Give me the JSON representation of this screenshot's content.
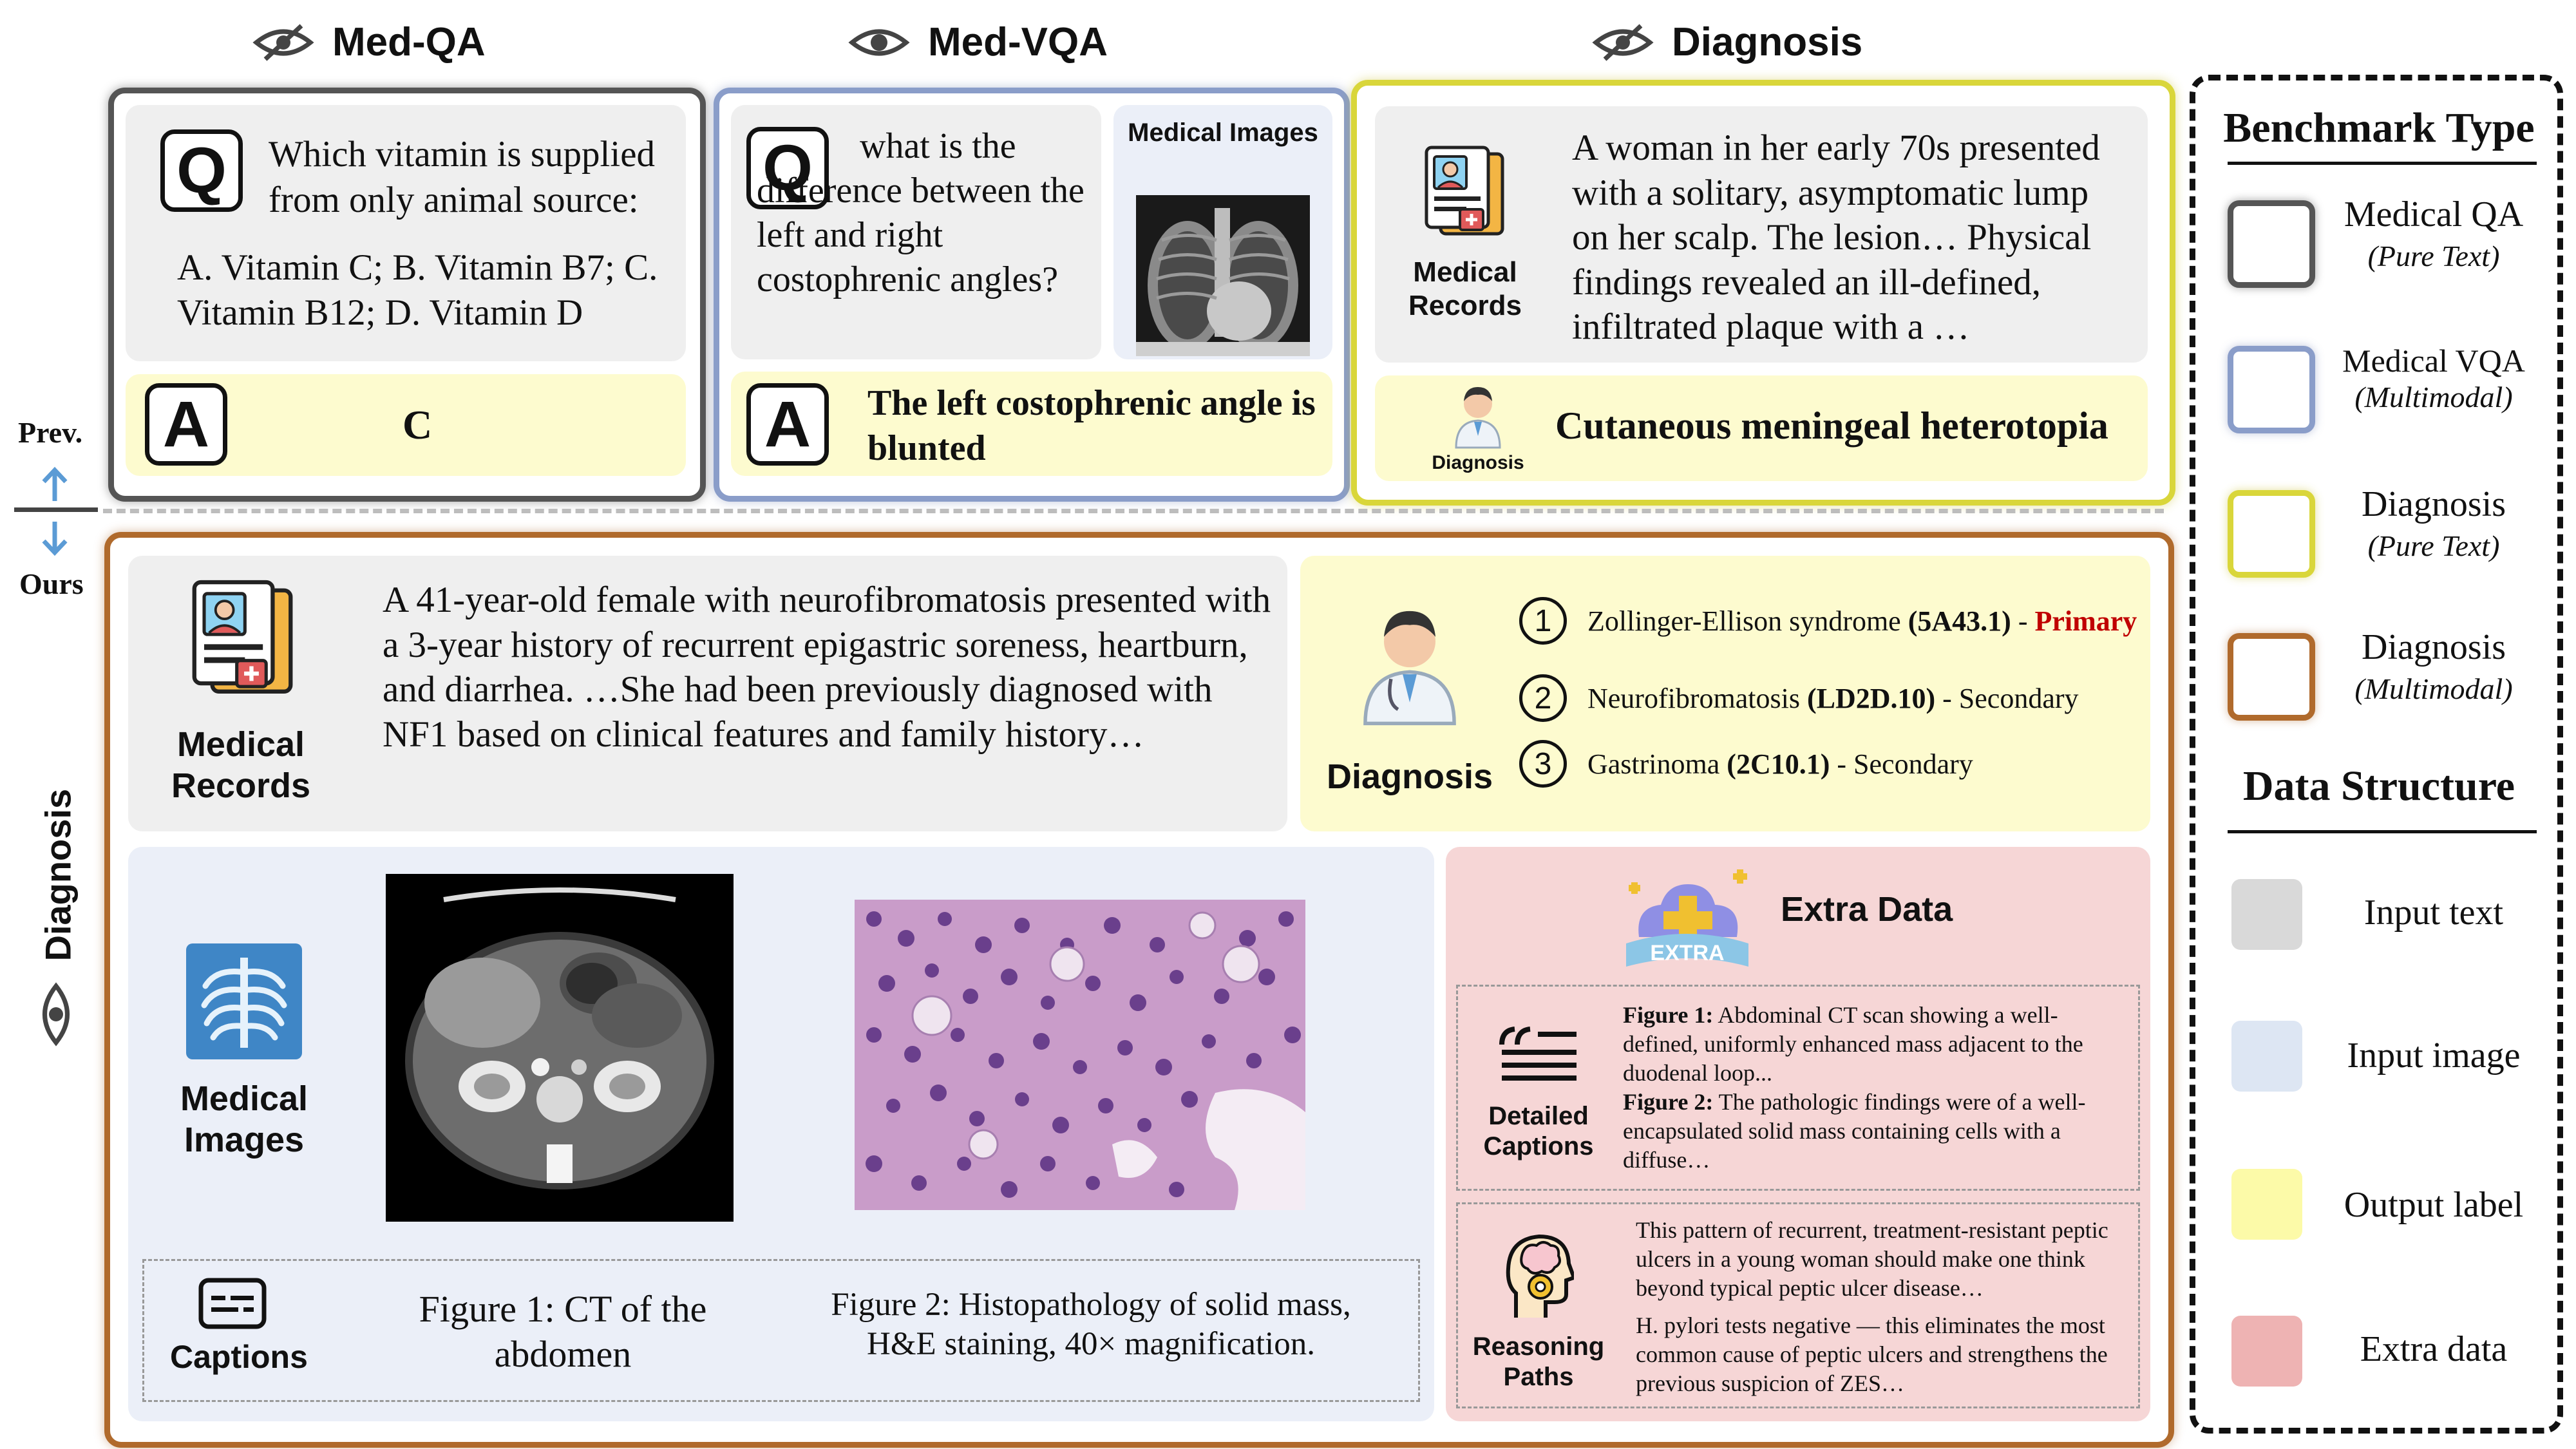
{
  "headers": {
    "medqa": "Med-QA",
    "medvqa": "Med-VQA",
    "diagnosis": "Diagnosis"
  },
  "medqa": {
    "question": "Which vitamin is supplied from only animal source:",
    "options": "A. Vitamin C; B. Vitamin B7; C. Vitamin B12; D. Vitamin D",
    "answer": "C",
    "q_letter": "Q",
    "a_letter": "A"
  },
  "medvqa": {
    "question": "what is the difference between the left and right costophrenic angles?",
    "images_label": "Medical Images",
    "answer": "The left costophrenic angle is blunted"
  },
  "prev_diagnosis": {
    "records_label": "Medical Records",
    "text": "A woman in her early 70s presented with a solitary, asymptomatic lump on her scalp. The lesion… Physical findings revealed an ill-defined, infiltrated plaque with a …",
    "diagnosis_icon_label": "Diagnosis",
    "answer": "Cutaneous meningeal heterotopia"
  },
  "side": {
    "prev": "Prev.",
    "ours": "Ours",
    "vertical": "Diagnosis"
  },
  "ours": {
    "records_label": "Medical Records",
    "record_text": "A 41-year-old female with neurofibromatosis presented with a 3-year history of recurrent epigastric soreness, heartburn, and diarrhea. …She had been previously diagnosed with NF1 based on clinical features and family history…",
    "diagnosis_label": "Diagnosis",
    "diagnoses": [
      {
        "num": "1",
        "name": "Zollinger-Ellison syndrome ",
        "code": "(5A43.1)",
        "sep": " - ",
        "role": "Primary",
        "primary": true
      },
      {
        "num": "2",
        "name": "Neurofibromatosis ",
        "code": "(LD2D.10)",
        "sep": " - ",
        "role": "Secondary",
        "primary": false
      },
      {
        "num": "3",
        "name": "Gastrinoma ",
        "code": "(2C10.1)",
        "sep": " - ",
        "role": "Secondary",
        "primary": false
      }
    ],
    "images_label": "Medical Images",
    "captions_label": "Captions",
    "caption1": "Figure 1: CT of the abdomen",
    "caption2": "Figure 2: Histopathology of solid mass, H&E staining, 40× magnification.",
    "extra_title": "Extra Data",
    "extra_badge": "EXTRA",
    "detailed_label": "Detailed Captions",
    "detailed": [
      {
        "bold": "Figure 1:",
        "text": " Abdominal CT scan showing a well-defined, uniformly enhanced mass adjacent to the duodenal loop..."
      },
      {
        "bold": "Figure 2:",
        "text": " The pathologic findings were of a well-encapsulated solid mass containing cells with a diffuse…"
      }
    ],
    "reasoning_label": "Reasoning Paths",
    "reasoning1": "This pattern of recurrent, treatment-resistant peptic ulcers in a young woman should make one think beyond typical peptic ulcer disease…",
    "reasoning2": "H. pylori tests negative — this eliminates the most common cause of peptic ulcers and strengthens the previous suspicion of ZES…"
  },
  "legend": {
    "benchmark_title": "Benchmark Type",
    "types": [
      {
        "name": "Medical QA",
        "sub": "(Pure Text)",
        "color": "#555555"
      },
      {
        "name": "Medical VQA",
        "sub": "(Multimodal)",
        "color": "#8a9dc9"
      },
      {
        "name": "Diagnosis",
        "sub": "(Pure Text)",
        "color": "#d9d63a"
      },
      {
        "name": "Diagnosis",
        "sub": "(Multimodal)",
        "color": "#b06a2c"
      }
    ],
    "structure_title": "Data Structure",
    "structures": [
      {
        "name": "Input text",
        "color": "#d9d9d9"
      },
      {
        "name": "Input image",
        "color": "#dde6f3"
      },
      {
        "name": "Output label",
        "color": "#fcfaa8"
      },
      {
        "name": "Extra data",
        "color": "#eeb3b3"
      }
    ]
  },
  "colors": {
    "qa_border": "#555555",
    "vqa_border": "#8a9dc9",
    "diag_border": "#d9d63a",
    "ours_border": "#b06a2c",
    "primary_red": "#c00000",
    "arrow_blue": "#5b9bd5"
  }
}
